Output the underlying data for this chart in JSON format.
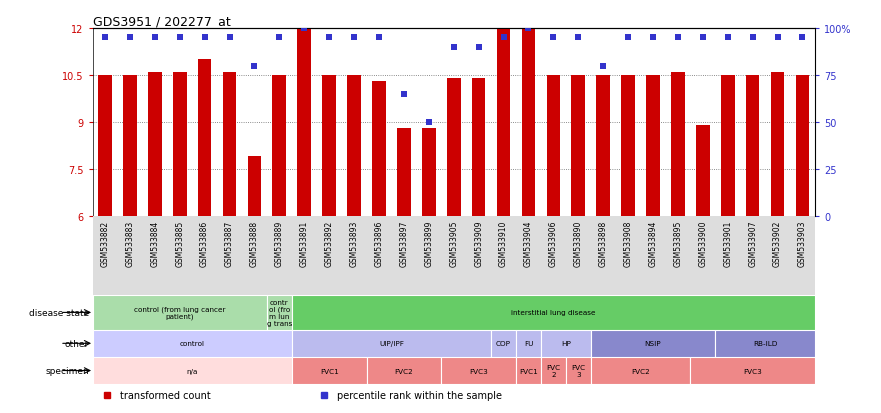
{
  "title": "GDS3951 / 202277_at",
  "samples": [
    "GSM533882",
    "GSM533883",
    "GSM533884",
    "GSM533885",
    "GSM533886",
    "GSM533887",
    "GSM533888",
    "GSM533889",
    "GSM533891",
    "GSM533892",
    "GSM533893",
    "GSM533896",
    "GSM533897",
    "GSM533899",
    "GSM533905",
    "GSM533909",
    "GSM533910",
    "GSM533904",
    "GSM533906",
    "GSM533890",
    "GSM533898",
    "GSM533908",
    "GSM533894",
    "GSM533895",
    "GSM533900",
    "GSM533901",
    "GSM533907",
    "GSM533902",
    "GSM533903"
  ],
  "bar_values": [
    10.5,
    10.5,
    10.6,
    10.6,
    11.0,
    10.6,
    7.9,
    10.5,
    12.0,
    10.5,
    10.5,
    10.3,
    8.8,
    8.8,
    10.4,
    10.4,
    12.1,
    12.0,
    10.5,
    10.5,
    10.5,
    10.5,
    10.5,
    10.6,
    8.9,
    10.5,
    10.5,
    10.6,
    10.5
  ],
  "dot_values": [
    95,
    95,
    95,
    95,
    95,
    95,
    80,
    95,
    100,
    95,
    95,
    95,
    65,
    50,
    90,
    90,
    95,
    100,
    95,
    95,
    80,
    95,
    95,
    95,
    95,
    95,
    95,
    95,
    95
  ],
  "ylim_left": [
    6,
    12
  ],
  "ylim_right": [
    0,
    100
  ],
  "yticks_left": [
    6,
    7.5,
    9,
    10.5,
    12
  ],
  "yticks_right": [
    0,
    25,
    50,
    75,
    100
  ],
  "bar_color": "#cc0000",
  "dot_color": "#3333cc",
  "disease_state_row": {
    "label": "disease state",
    "segments": [
      {
        "text": "control (from lung cancer\npatient)",
        "start": 0,
        "end": 7,
        "color": "#aaddaa"
      },
      {
        "text": "contr\nol (fro\nm lun\ng trans",
        "start": 7,
        "end": 8,
        "color": "#aaddaa"
      },
      {
        "text": "interstitial lung disease",
        "start": 8,
        "end": 29,
        "color": "#66cc66"
      }
    ]
  },
  "other_row": {
    "label": "other",
    "segments": [
      {
        "text": "control",
        "start": 0,
        "end": 8,
        "color": "#ccccff"
      },
      {
        "text": "UIP/IPF",
        "start": 8,
        "end": 16,
        "color": "#bbbbee"
      },
      {
        "text": "COP",
        "start": 16,
        "end": 17,
        "color": "#bbbbee"
      },
      {
        "text": "FU",
        "start": 17,
        "end": 18,
        "color": "#bbbbee"
      },
      {
        "text": "HP",
        "start": 18,
        "end": 20,
        "color": "#bbbbee"
      },
      {
        "text": "NSIP",
        "start": 20,
        "end": 25,
        "color": "#8888cc"
      },
      {
        "text": "RB-ILD",
        "start": 25,
        "end": 29,
        "color": "#8888cc"
      }
    ]
  },
  "specimen_row": {
    "label": "specimen",
    "segments": [
      {
        "text": "n/a",
        "start": 0,
        "end": 8,
        "color": "#ffdddd"
      },
      {
        "text": "FVC1",
        "start": 8,
        "end": 11,
        "color": "#ee8888"
      },
      {
        "text": "FVC2",
        "start": 11,
        "end": 14,
        "color": "#ee8888"
      },
      {
        "text": "FVC3",
        "start": 14,
        "end": 17,
        "color": "#ee8888"
      },
      {
        "text": "FVC1",
        "start": 17,
        "end": 18,
        "color": "#ee8888"
      },
      {
        "text": "FVC\n2",
        "start": 18,
        "end": 19,
        "color": "#ee8888"
      },
      {
        "text": "FVC\n3",
        "start": 19,
        "end": 20,
        "color": "#ee8888"
      },
      {
        "text": "FVC2",
        "start": 20,
        "end": 24,
        "color": "#ee8888"
      },
      {
        "text": "FVC3",
        "start": 24,
        "end": 29,
        "color": "#ee8888"
      }
    ]
  },
  "legend_items": [
    {
      "label": "transformed count",
      "color": "#cc0000",
      "marker": "s"
    },
    {
      "label": "percentile rank within the sample",
      "color": "#3333cc",
      "marker": "s"
    }
  ],
  "background_color": "#ffffff",
  "xtick_bg": "#dddddd",
  "grid_color": "#666666",
  "bar_width": 0.55
}
